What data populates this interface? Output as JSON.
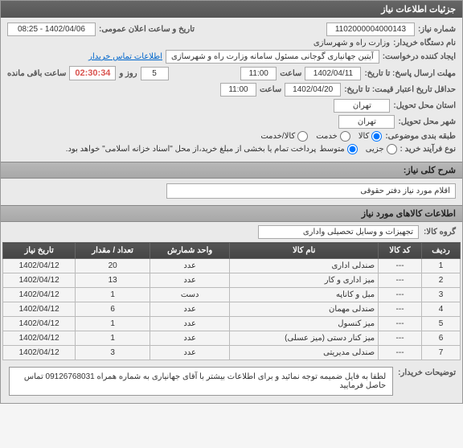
{
  "header": {
    "title": "جزئیات اطلاعات نیاز"
  },
  "info": {
    "need_no_label": "شماره نیاز:",
    "need_no": "1102000004000143",
    "announce_label": "تاریخ و ساعت اعلان عمومی:",
    "announce_val": "1402/04/06 - 08:25",
    "org_label": "نام دستگاه خریدار:",
    "org_val": "وزارت راه و شهرسازی",
    "requester_label": "ایجاد کننده درخواست:",
    "requester_val": "آیتین جهانیاری گوجانی مسئول سامانه وزارت راه و شهرسازی",
    "contact_link": "اطلاعات تماس خریدار",
    "deadline_label": "مهلت ارسال پاسخ: تا تاریخ:",
    "deadline_date": "1402/04/11",
    "time_label": "ساعت",
    "deadline_time": "11:00",
    "days_val": "5",
    "days_label": "روز و",
    "countdown": "02:30:34",
    "remain_label": "ساعت باقی مانده",
    "validity_label": "حداقل تاریخ اعتبار قیمت: تا تاریخ:",
    "validity_date": "1402/04/20",
    "validity_time": "11:00",
    "delivery_addr_label": "استان محل تحویل:",
    "delivery_addr": "تهران",
    "delivery_city_label": "شهر محل تحویل:",
    "delivery_city": "تهران",
    "category_label": "طبقه بندی موضوعی:",
    "radio_goods": "کالا",
    "radio_service": "خدمت",
    "radio_both": "کالا/خدمت",
    "process_label": "نوع فرآیند خرید :",
    "process_r1": "جزیی",
    "process_r2": "متوسط",
    "process_note": "پرداخت تمام یا بخشی از مبلغ خرید،از محل \"اسناد خزانه اسلامی\" خواهد بود."
  },
  "desc": {
    "header": "شرح کلی نیاز:",
    "text": "اقلام مورد نیاز دفتر حقوقی"
  },
  "goods": {
    "header": "اطلاعات کالاهای مورد نیاز",
    "group_label": "گروه کالا:",
    "group_val": "تجهیزات و وسایل تحصیلی واداری"
  },
  "table": {
    "cols": [
      "ردیف",
      "کد کالا",
      "نام کالا",
      "واحد شمارش",
      "تعداد / مقدار",
      "تاریخ نیاز"
    ],
    "rows": [
      [
        "1",
        "---",
        "صندلی اداری",
        "عدد",
        "20",
        "1402/04/12"
      ],
      [
        "2",
        "---",
        "میز اداری و کار",
        "عدد",
        "13",
        "1402/04/12"
      ],
      [
        "3",
        "---",
        "مبل و کاناپه",
        "دست",
        "1",
        "1402/04/12"
      ],
      [
        "4",
        "---",
        "صندلی مهمان",
        "عدد",
        "6",
        "1402/04/12"
      ],
      [
        "5",
        "---",
        "میز کنسول",
        "عدد",
        "1",
        "1402/04/12"
      ],
      [
        "6",
        "---",
        "میز کنار دستی (میز عسلی)",
        "عدد",
        "1",
        "1402/04/12"
      ],
      [
        "7",
        "---",
        "صندلی مدیریتی",
        "عدد",
        "3",
        "1402/04/12"
      ]
    ]
  },
  "buyer_note": {
    "label": "توضیحات خریدار:",
    "text": "لطفا به فایل ضمیمه توجه نمائید و برای اطلاعات بیشتر با آقای جهانیاری به شماره همراه 09126768031 تماس حاصل فرمایید"
  }
}
